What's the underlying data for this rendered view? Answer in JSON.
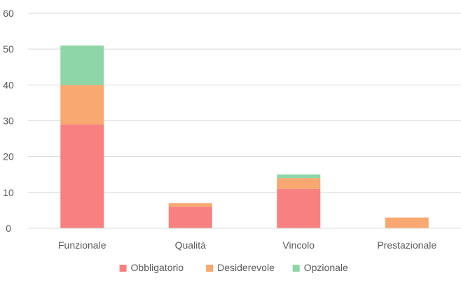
{
  "chart_data": {
    "type": "bar",
    "stacked": true,
    "categories": [
      "Funzionale",
      "Qualità",
      "Vincolo",
      "Prestazionale"
    ],
    "series": [
      {
        "name": "Obbligatorio",
        "values": [
          29,
          6,
          11,
          0
        ],
        "color": "#f88080"
      },
      {
        "name": "Desiderevole",
        "values": [
          11,
          1,
          3,
          3
        ],
        "color": "#f8a870"
      },
      {
        "name": "Opzionale",
        "values": [
          11,
          0,
          1,
          0
        ],
        "color": "#8ed6a8"
      }
    ],
    "ylim": [
      0,
      60
    ],
    "yticks": [
      "0",
      "10",
      "20",
      "30",
      "40",
      "50",
      "60"
    ],
    "grid": true,
    "legend_position": "bottom",
    "title": "",
    "xlabel": "",
    "ylabel": ""
  }
}
